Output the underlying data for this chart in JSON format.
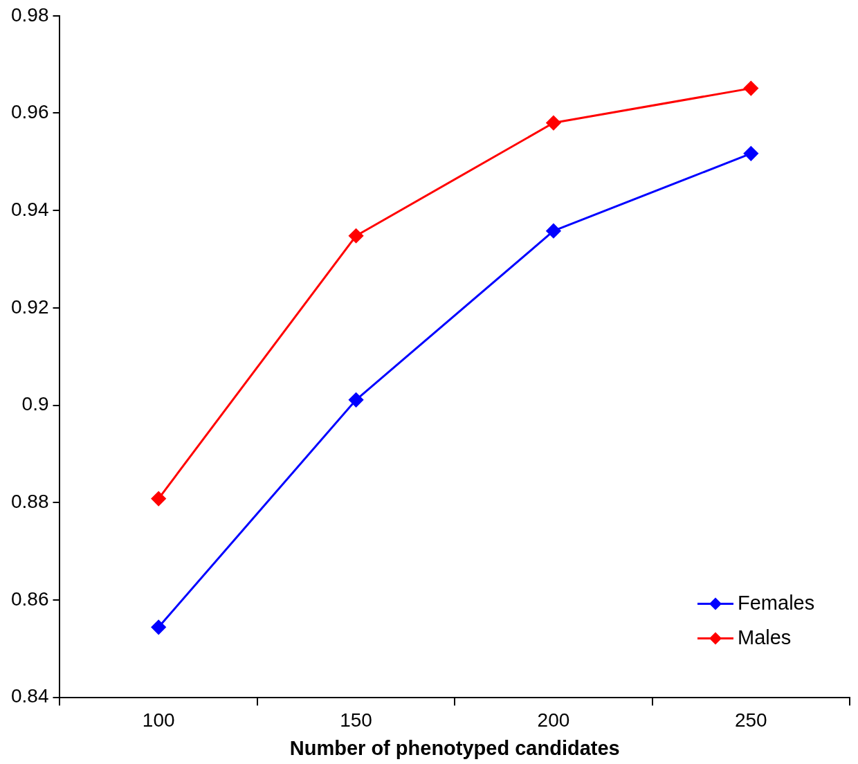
{
  "chart_data": {
    "type": "line",
    "xlabel": "Number of phenotyped candidates",
    "categories": [
      "100",
      "150",
      "200",
      "250"
    ],
    "series": [
      {
        "name": "Females",
        "color": "#0000ff",
        "values": [
          0.8544,
          0.9011,
          0.9358,
          0.9517
        ]
      },
      {
        "name": "Males",
        "color": "#ff0000",
        "values": [
          0.8808,
          0.9348,
          0.958,
          0.9651
        ]
      }
    ],
    "ylim": [
      0.84,
      0.98
    ],
    "yticks": [
      0.84,
      0.86,
      0.88,
      0.9,
      0.92,
      0.94,
      0.96,
      0.98
    ],
    "grid": false,
    "legend": "bottom right",
    "marker": "diamond",
    "line_style": "solid"
  }
}
